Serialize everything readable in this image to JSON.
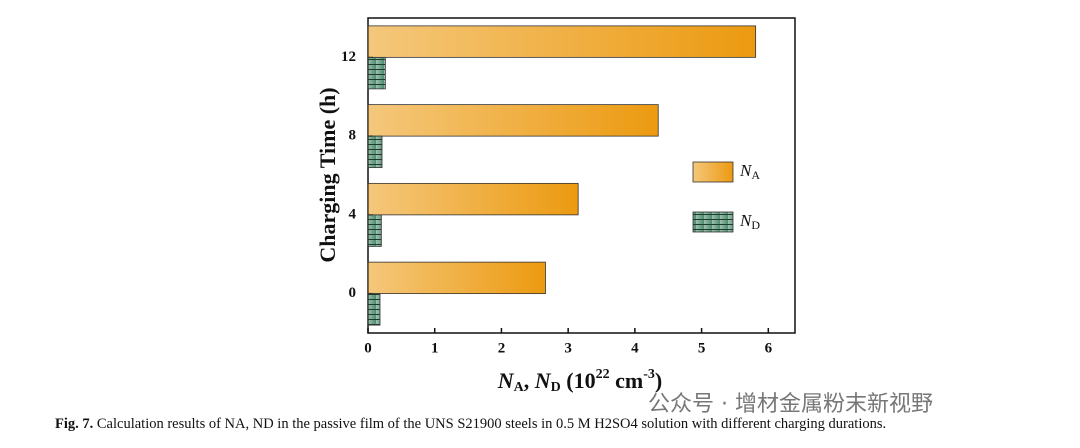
{
  "chart_data": {
    "type": "hbar",
    "categories": [
      "0",
      "4",
      "8",
      "12"
    ],
    "series": [
      {
        "name": "NA",
        "color": "#ec9a10",
        "values": [
          2.66,
          3.15,
          4.35,
          5.81
        ]
      },
      {
        "name": "ND",
        "color": "#4e8c6e",
        "hatch": "horizontal",
        "values": [
          0.18,
          0.2,
          0.21,
          0.26
        ]
      }
    ],
    "xlim": [
      0,
      6.4
    ],
    "xticks": [
      0,
      1,
      2,
      3,
      4,
      5,
      6
    ],
    "y_label": "Charging Time (h)",
    "x_label": [
      "N",
      "A",
      ", ",
      "N",
      "D",
      " (10",
      "22",
      " cm",
      "-3",
      ")"
    ],
    "legend": "right"
  },
  "caption": {
    "figure": "Fig. 7.",
    "text": "Calculation results of NA, ND in the passive film of the UNS S21900 steels in 0.5 M H2SO4 solution with different charging durations."
  },
  "watermark": "公众号 · 增材金属粉末新视野"
}
